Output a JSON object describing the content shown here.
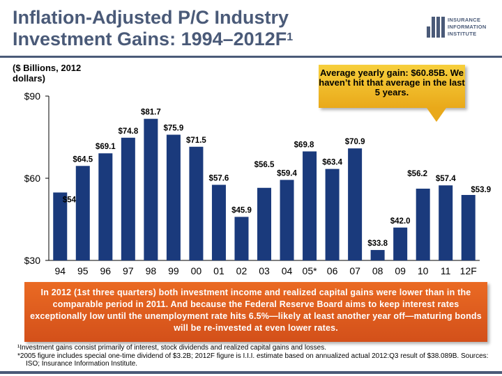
{
  "header": {
    "title_line1": "Inflation-Adjusted P/C Industry",
    "title_line2": "Investment Gains: 1994–2012F",
    "title_sup": "1"
  },
  "logo": {
    "line1": "INSURANCE",
    "line2": "INFORMATION",
    "line3": "INSTITUTE"
  },
  "units_note": "($ Billions, 2012 dollars)",
  "callout": {
    "text": "Average yearly gain: $60.85B. We haven’t hit that average in the last 5 years."
  },
  "chart_data": {
    "type": "bar",
    "categories": [
      "94",
      "95",
      "96",
      "97",
      "98",
      "99",
      "00",
      "01",
      "02",
      "03",
      "04",
      "05*",
      "06",
      "07",
      "08",
      "09",
      "10",
      "11",
      "12F"
    ],
    "values": [
      54.8,
      64.5,
      69.1,
      74.8,
      81.7,
      75.9,
      71.5,
      57.6,
      45.9,
      56.5,
      59.4,
      69.8,
      63.4,
      70.9,
      33.8,
      42.0,
      56.2,
      57.4,
      53.9
    ],
    "data_labels": [
      "$54.8",
      "$64.5",
      "$69.1",
      "$74.8",
      "$81.7",
      "$75.9",
      "$71.5",
      "$57.6",
      "$45.9",
      "$56.5",
      "$59.4",
      "$69.8",
      "$63.4",
      "$70.9",
      "$33.8",
      "$42.0",
      "$56.2",
      "$57.4",
      "$53.9"
    ],
    "ylim": [
      30,
      90
    ],
    "yticks": [
      30,
      60,
      90
    ],
    "ytick_labels": [
      "$30",
      "$60",
      "$90"
    ],
    "bar_color": "#1a3a7c",
    "grid": false
  },
  "bottom_note": "In 2012 (1st three quarters) both investment income and realized capital gains were lower than in the comparable period in 2011. And because the Federal Reserve Board aims to keep interest rates exceptionally low until the unemployment rate hits 6.5%—likely at least another year off—maturing bonds will be re-invested at even lower rates.",
  "footnotes": {
    "fn1": "¹Investment gains consist primarily of interest, stock dividends and realized capital gains and losses.",
    "fn2": "*2005 figure includes special one-time dividend of $3.2B; 2012F figure is I.I.I. estimate based on annualized actual 2012:Q3 result of $38.089B. Sources: ISO; Insurance Information Institute."
  },
  "colors": {
    "title": "#4a5a78",
    "callout": "#f0bc28",
    "note_box": "#df5e1f",
    "bars": "#1a3a7c"
  }
}
